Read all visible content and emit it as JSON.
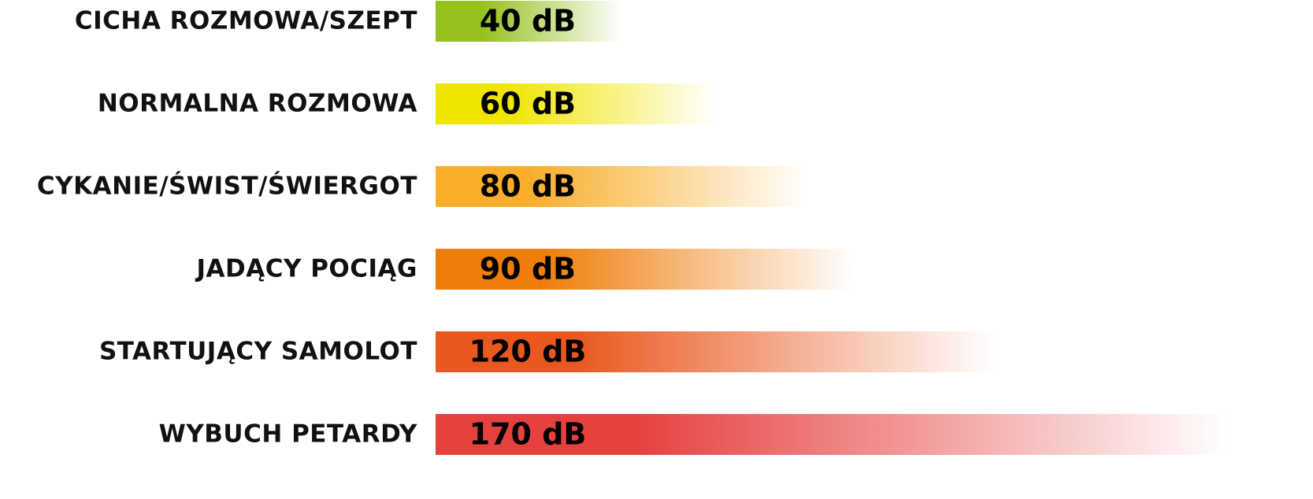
{
  "chart_data": {
    "type": "bar",
    "orientation": "horizontal",
    "categories": [
      "CICHA ROZMOWA/SZEPT",
      "NORMALNA ROZMOWA",
      "CYKANIE/ŚWIST/ŚWIERGOT",
      "JADĄCY POCIĄG",
      "STARTUJĄCY SAMOLOT",
      "WYBUCH PETARDY"
    ],
    "values": [
      40,
      60,
      80,
      90,
      120,
      170
    ],
    "value_labels": [
      "40 dB",
      "60 dB",
      "80 dB",
      "90 dB",
      "120 dB",
      "170 dB"
    ],
    "colors": [
      "#95c11f",
      "#f0e500",
      "#f8ae2a",
      "#ef7d0a",
      "#e9581f",
      "#e6403f"
    ]
  }
}
